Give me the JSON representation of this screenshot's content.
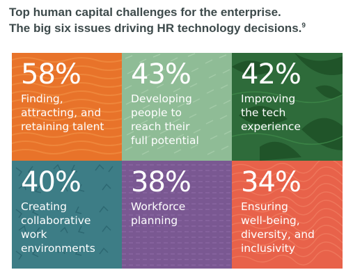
{
  "header": {
    "line1": "Top human capital challenges for the enterprise.",
    "line2": "The big six issues driving HR technology decisions.",
    "footnote": "9"
  },
  "tiles": [
    {
      "percent": "58%",
      "text": "Finding,\nattracting, and\nretaining talent",
      "color": "#e8732a"
    },
    {
      "percent": "43%",
      "text": "Developing\npeople to\nreach their\nfull potential",
      "color": "#8fbc96"
    },
    {
      "percent": "42%",
      "text": "Improving\nthe tech\nexperience",
      "color": "#2e6b3a"
    },
    {
      "percent": "40%",
      "text": "Creating\ncollaborative\nwork\nenvironments",
      "color": "#3d7d86"
    },
    {
      "percent": "38%",
      "text": "Workforce\nplanning",
      "color": "#7a5892"
    },
    {
      "percent": "34%",
      "text": "Ensuring\nwell-being,\ndiversity, and\ninclusivity",
      "color": "#e8624a"
    }
  ]
}
